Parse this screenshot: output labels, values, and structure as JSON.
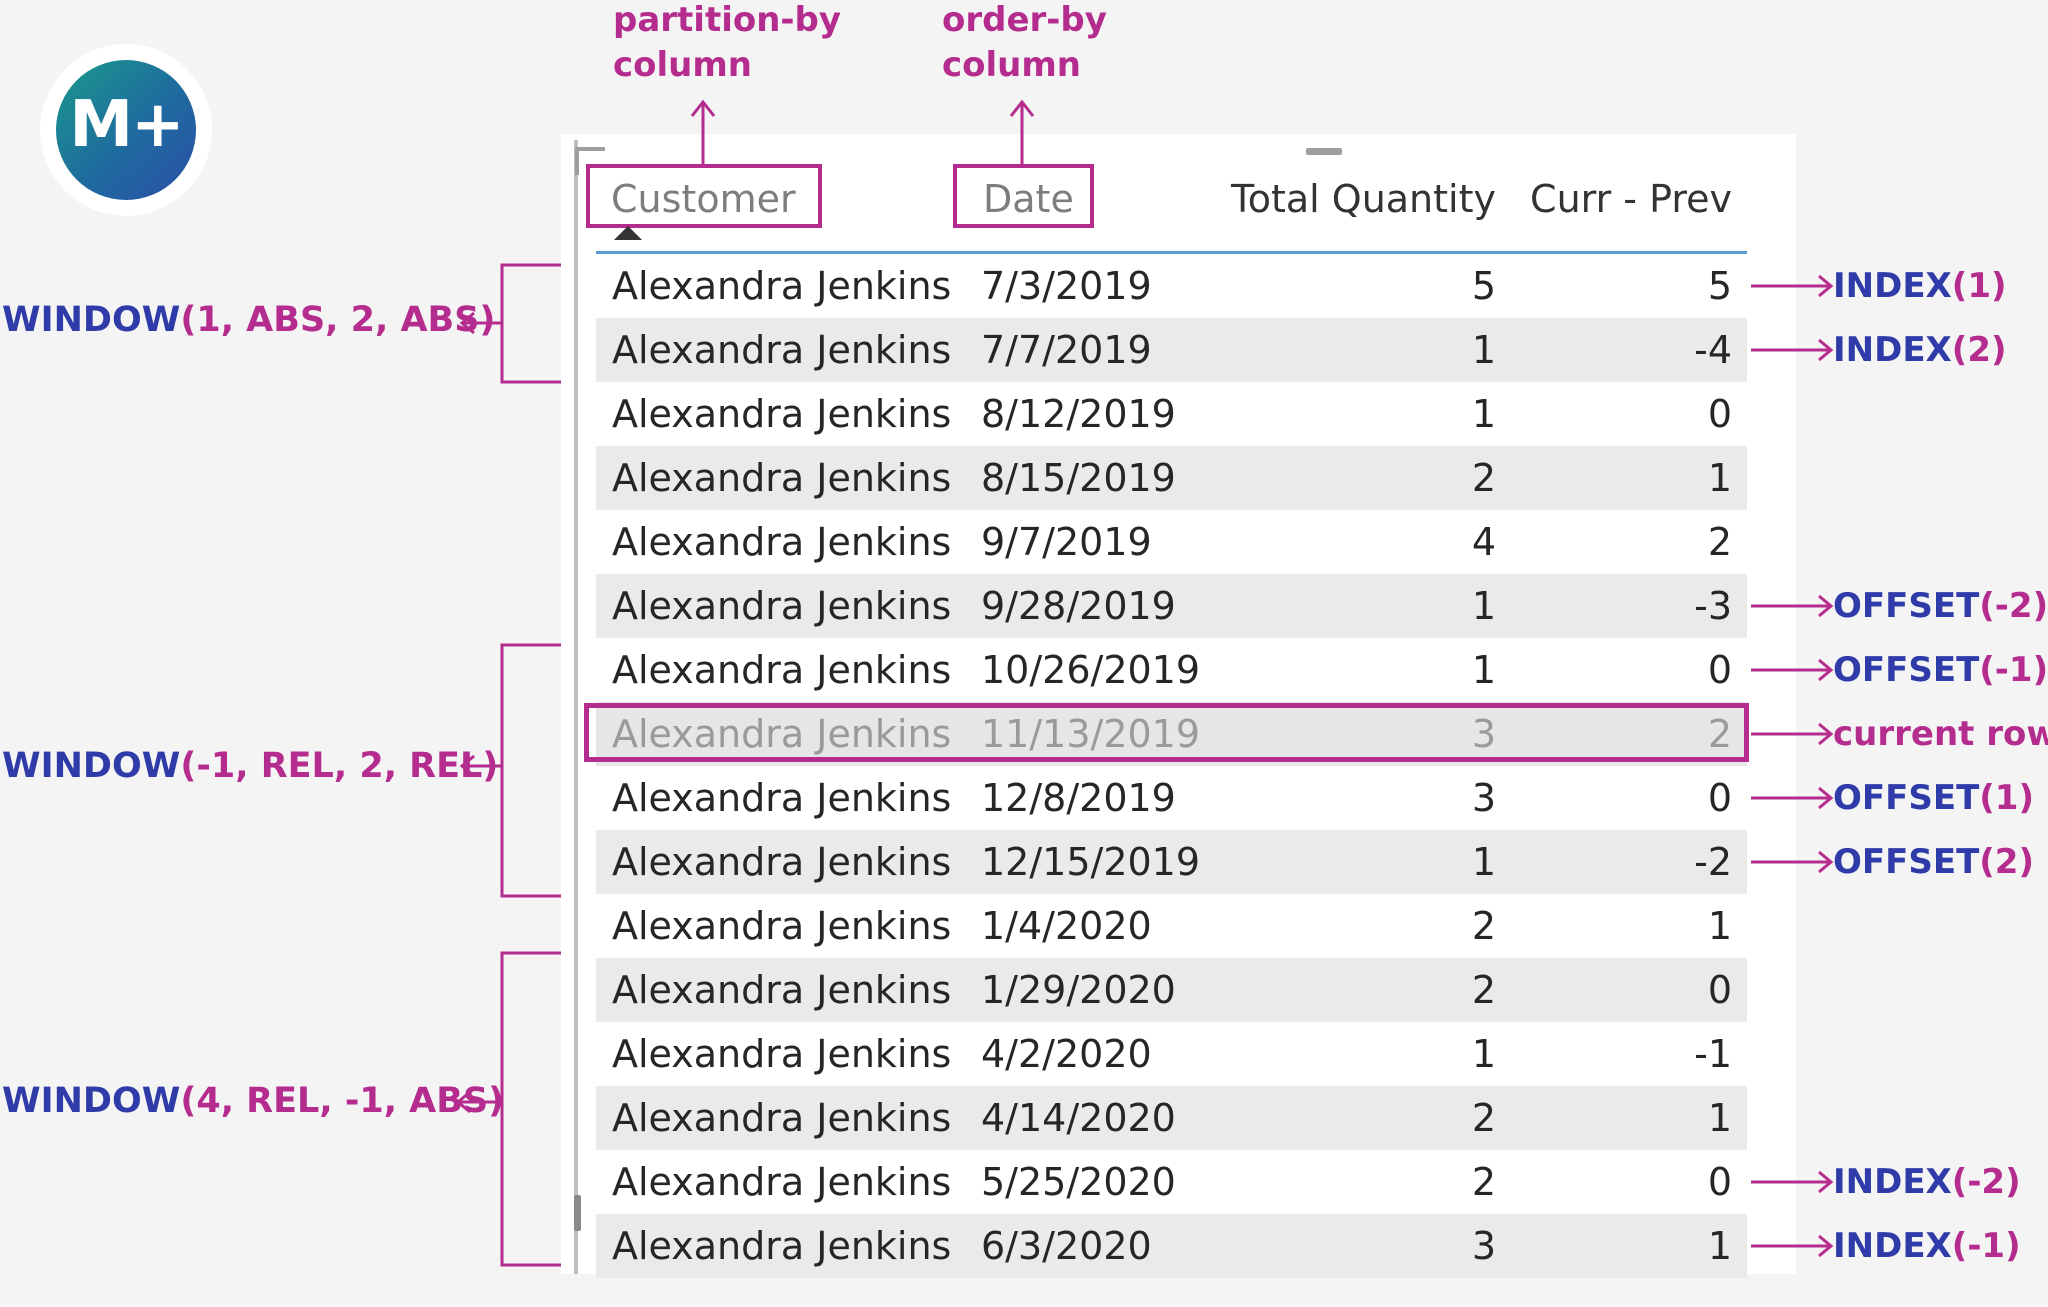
{
  "logo": {
    "text": "M+"
  },
  "annotations": {
    "partition": {
      "line1": "partition-by",
      "line2": "column"
    },
    "order": {
      "line1": "order-by",
      "line2": "column"
    }
  },
  "table": {
    "columns": [
      "Customer",
      "Date",
      "Total Quantity",
      "Curr - Prev"
    ],
    "rows": [
      [
        "Alexandra Jenkins",
        "7/3/2019",
        "5",
        "5"
      ],
      [
        "Alexandra Jenkins",
        "7/7/2019",
        "1",
        "-4"
      ],
      [
        "Alexandra Jenkins",
        "8/12/2019",
        "1",
        "0"
      ],
      [
        "Alexandra Jenkins",
        "8/15/2019",
        "2",
        "1"
      ],
      [
        "Alexandra Jenkins",
        "9/7/2019",
        "4",
        "2"
      ],
      [
        "Alexandra Jenkins",
        "9/28/2019",
        "1",
        "-3"
      ],
      [
        "Alexandra Jenkins",
        "10/26/2019",
        "1",
        "0"
      ],
      [
        "Alexandra Jenkins",
        "11/13/2019",
        "3",
        "2"
      ],
      [
        "Alexandra Jenkins",
        "12/8/2019",
        "3",
        "0"
      ],
      [
        "Alexandra Jenkins",
        "12/15/2019",
        "1",
        "-2"
      ],
      [
        "Alexandra Jenkins",
        "1/4/2020",
        "2",
        "1"
      ],
      [
        "Alexandra Jenkins",
        "1/29/2020",
        "2",
        "0"
      ],
      [
        "Alexandra Jenkins",
        "4/2/2020",
        "1",
        "-1"
      ],
      [
        "Alexandra Jenkins",
        "4/14/2020",
        "2",
        "1"
      ],
      [
        "Alexandra Jenkins",
        "5/25/2020",
        "2",
        "0"
      ],
      [
        "Alexandra Jenkins",
        "6/3/2020",
        "3",
        "1"
      ]
    ],
    "current_row_index": 7
  },
  "right_labels": [
    {
      "fn": "INDEX",
      "arg": "(1)",
      "row": 0
    },
    {
      "fn": "INDEX",
      "arg": "(2)",
      "row": 1
    },
    {
      "fn": "OFFSET",
      "arg": "(-2)",
      "row": 5
    },
    {
      "fn": "OFFSET",
      "arg": "(-1)",
      "row": 6
    },
    {
      "fn": "",
      "arg": "current row",
      "row": 7
    },
    {
      "fn": "OFFSET",
      "arg": "(1)",
      "row": 8
    },
    {
      "fn": "OFFSET",
      "arg": "(2)",
      "row": 9
    },
    {
      "fn": "INDEX",
      "arg": "(-2)",
      "row": 14
    },
    {
      "fn": "INDEX",
      "arg": "(-1)",
      "row": 15
    }
  ],
  "left_labels": [
    {
      "fn": "WINDOW",
      "args": "(1, ABS, 2, ABS)"
    },
    {
      "fn": "WINDOW",
      "args": "(-1, REL, 2, REL)"
    },
    {
      "fn": "WINDOW",
      "args": "(4, REL, -1, ABS)"
    }
  ],
  "colors": {
    "magenta": "#b52c8f",
    "blue": "#2e3ba8",
    "header_line": "#5b9bd5"
  }
}
